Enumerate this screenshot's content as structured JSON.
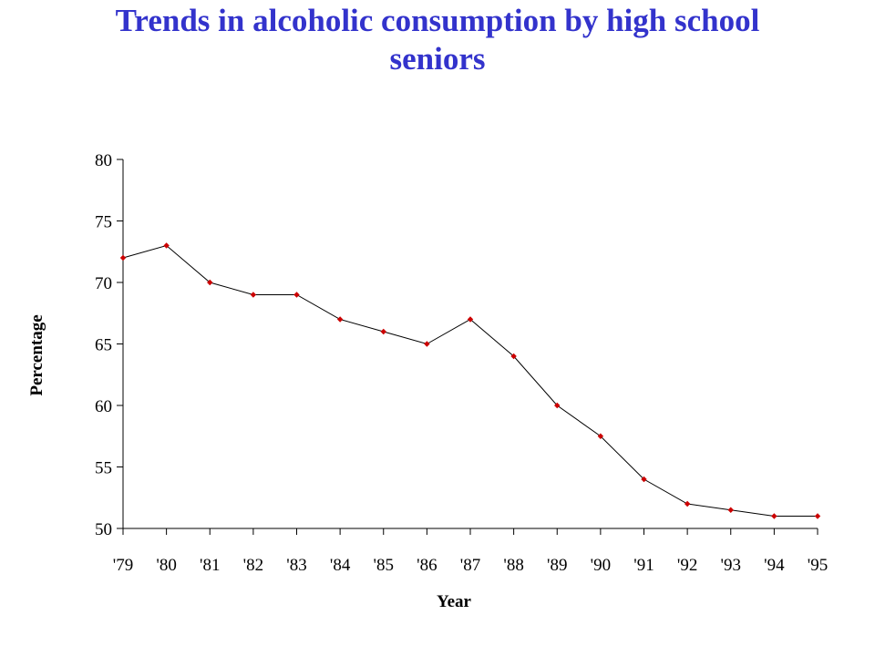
{
  "title": {
    "line1": "Trends in alcoholic consumption by high school",
    "line2": "seniors"
  },
  "colors": {
    "title": "#3333cc",
    "line": "#000000",
    "marker": "#cc0000"
  },
  "chart_data": {
    "type": "line",
    "title": "Trends in alcoholic consumption by high school seniors",
    "xlabel": "Year",
    "ylabel": "Percentage",
    "ylim": [
      50,
      80
    ],
    "yticks": [
      50,
      55,
      60,
      65,
      70,
      75,
      80
    ],
    "categories": [
      "'79",
      "'80",
      "'81",
      "'82",
      "'83",
      "'84",
      "'85",
      "'86",
      "'87",
      "'88",
      "'89",
      "'90",
      "'91",
      "'92",
      "'93",
      "'94",
      "'95"
    ],
    "values": [
      72,
      73,
      70,
      69,
      69,
      67,
      66,
      65,
      67,
      64,
      60,
      57.5,
      54,
      52,
      51.5,
      51,
      51
    ],
    "grid": false,
    "legend": "none",
    "marker": "diamond"
  }
}
